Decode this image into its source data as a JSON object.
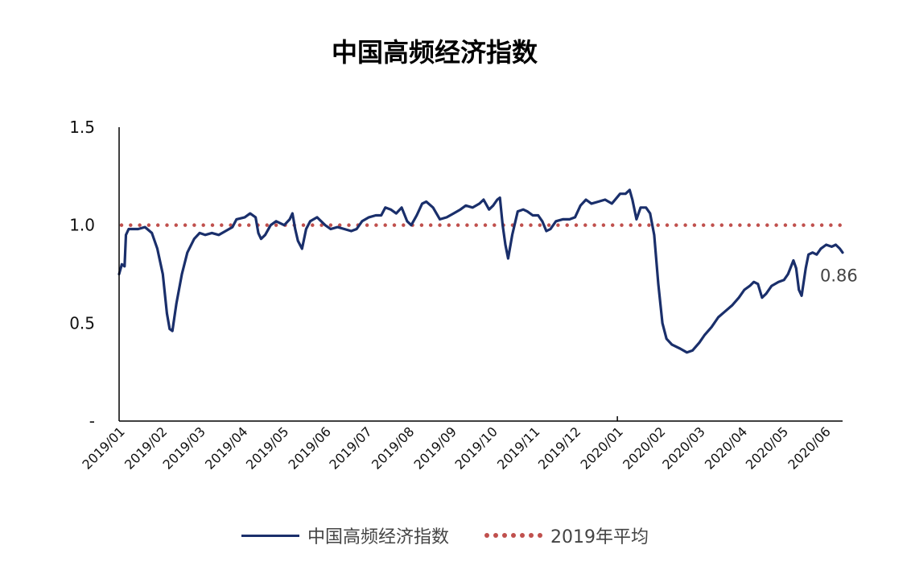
{
  "colors": {
    "series": "#1a2f6b",
    "reference": "#c0504d",
    "axis": "#000000"
  },
  "chart_data": {
    "type": "line",
    "title": "中国高频经济指数",
    "xlabel": "",
    "ylabel": "",
    "ylim": [
      0,
      1.5
    ],
    "yticks": [
      {
        "value": 1.5,
        "label": "1.5"
      },
      {
        "value": 1.0,
        "label": "1.0"
      },
      {
        "value": 0.5,
        "label": "0.5"
      },
      {
        "value": 0,
        "label": "-"
      }
    ],
    "x_ticks": [
      "2019/01",
      "2019/02",
      "2019/03",
      "2019/04",
      "2019/05",
      "2019/06",
      "2019/07",
      "2019/08",
      "2019/09",
      "2019/10",
      "2019/11",
      "2019/12",
      "2020/01",
      "2020/02",
      "2020/03",
      "2020/04",
      "2020/05",
      "2020/06"
    ],
    "grid": false,
    "legend_position": "bottom",
    "end_label": "0.86",
    "series": [
      {
        "name": "中国高频经济指数",
        "style": "solid",
        "points": [
          [
            "2019/01/01",
            0.75
          ],
          [
            "2019/01/03",
            0.8
          ],
          [
            "2019/01/05",
            0.79
          ],
          [
            "2019/01/06",
            0.95
          ],
          [
            "2019/01/08",
            0.98
          ],
          [
            "2019/01/15",
            0.98
          ],
          [
            "2019/01/20",
            0.99
          ],
          [
            "2019/01/25",
            0.96
          ],
          [
            "2019/01/29",
            0.88
          ],
          [
            "2019/02/02",
            0.75
          ],
          [
            "2019/02/05",
            0.55
          ],
          [
            "2019/02/07",
            0.47
          ],
          [
            "2019/02/09",
            0.46
          ],
          [
            "2019/02/12",
            0.6
          ],
          [
            "2019/02/16",
            0.75
          ],
          [
            "2019/02/20",
            0.86
          ],
          [
            "2019/02/25",
            0.93
          ],
          [
            "2019/03/01",
            0.96
          ],
          [
            "2019/03/05",
            0.95
          ],
          [
            "2019/03/10",
            0.96
          ],
          [
            "2019/03/15",
            0.95
          ],
          [
            "2019/03/20",
            0.97
          ],
          [
            "2019/03/25",
            0.99
          ],
          [
            "2019/03/28",
            1.03
          ],
          [
            "2019/04/03",
            1.04
          ],
          [
            "2019/04/07",
            1.06
          ],
          [
            "2019/04/11",
            1.04
          ],
          [
            "2019/04/13",
            0.96
          ],
          [
            "2019/04/15",
            0.93
          ],
          [
            "2019/04/18",
            0.95
          ],
          [
            "2019/04/22",
            1.0
          ],
          [
            "2019/04/26",
            1.02
          ],
          [
            "2019/05/02",
            1.0
          ],
          [
            "2019/05/06",
            1.03
          ],
          [
            "2019/05/08",
            1.06
          ],
          [
            "2019/05/10",
            0.98
          ],
          [
            "2019/05/12",
            0.92
          ],
          [
            "2019/05/15",
            0.88
          ],
          [
            "2019/05/18",
            0.98
          ],
          [
            "2019/05/21",
            1.02
          ],
          [
            "2019/05/26",
            1.04
          ],
          [
            "2019/06/01",
            1.0
          ],
          [
            "2019/06/05",
            0.98
          ],
          [
            "2019/06/10",
            0.99
          ],
          [
            "2019/06/15",
            0.98
          ],
          [
            "2019/06/20",
            0.97
          ],
          [
            "2019/06/24",
            0.98
          ],
          [
            "2019/06/28",
            1.02
          ],
          [
            "2019/07/03",
            1.04
          ],
          [
            "2019/07/08",
            1.05
          ],
          [
            "2019/07/12",
            1.05
          ],
          [
            "2019/07/15",
            1.09
          ],
          [
            "2019/07/19",
            1.08
          ],
          [
            "2019/07/23",
            1.06
          ],
          [
            "2019/07/27",
            1.09
          ],
          [
            "2019/07/31",
            1.02
          ],
          [
            "2019/08/03",
            1.0
          ],
          [
            "2019/08/07",
            1.05
          ],
          [
            "2019/08/11",
            1.11
          ],
          [
            "2019/08/14",
            1.12
          ],
          [
            "2019/08/19",
            1.09
          ],
          [
            "2019/08/24",
            1.03
          ],
          [
            "2019/08/29",
            1.04
          ],
          [
            "2019/09/03",
            1.06
          ],
          [
            "2019/09/08",
            1.08
          ],
          [
            "2019/09/12",
            1.1
          ],
          [
            "2019/09/17",
            1.09
          ],
          [
            "2019/09/22",
            1.11
          ],
          [
            "2019/09/25",
            1.13
          ],
          [
            "2019/09/29",
            1.08
          ],
          [
            "2019/10/02",
            1.1
          ],
          [
            "2019/10/05",
            1.13
          ],
          [
            "2019/10/07",
            1.14
          ],
          [
            "2019/10/09",
            1.0
          ],
          [
            "2019/10/11",
            0.9
          ],
          [
            "2019/10/13",
            0.83
          ],
          [
            "2019/10/16",
            0.95
          ],
          [
            "2019/10/20",
            1.07
          ],
          [
            "2019/10/24",
            1.08
          ],
          [
            "2019/10/27",
            1.07
          ],
          [
            "2019/10/31",
            1.05
          ],
          [
            "2019/11/04",
            1.05
          ],
          [
            "2019/11/07",
            1.02
          ],
          [
            "2019/11/10",
            0.97
          ],
          [
            "2019/11/13",
            0.98
          ],
          [
            "2019/11/17",
            1.02
          ],
          [
            "2019/11/22",
            1.03
          ],
          [
            "2019/11/27",
            1.03
          ],
          [
            "2019/12/01",
            1.04
          ],
          [
            "2019/12/05",
            1.1
          ],
          [
            "2019/12/09",
            1.13
          ],
          [
            "2019/12/13",
            1.11
          ],
          [
            "2019/12/18",
            1.12
          ],
          [
            "2019/12/23",
            1.13
          ],
          [
            "2019/12/28",
            1.11
          ],
          [
            "2020/01/03",
            1.16
          ],
          [
            "2020/01/07",
            1.16
          ],
          [
            "2020/01/10",
            1.18
          ],
          [
            "2020/01/12",
            1.13
          ],
          [
            "2020/01/15",
            1.03
          ],
          [
            "2020/01/18",
            1.09
          ],
          [
            "2020/01/22",
            1.09
          ],
          [
            "2020/01/25",
            1.06
          ],
          [
            "2020/01/28",
            0.95
          ],
          [
            "2020/01/31",
            0.7
          ],
          [
            "2020/02/03",
            0.5
          ],
          [
            "2020/02/06",
            0.42
          ],
          [
            "2020/02/10",
            0.39
          ],
          [
            "2020/02/16",
            0.37
          ],
          [
            "2020/02/21",
            0.35
          ],
          [
            "2020/02/25",
            0.36
          ],
          [
            "2020/03/01",
            0.4
          ],
          [
            "2020/03/05",
            0.44
          ],
          [
            "2020/03/10",
            0.48
          ],
          [
            "2020/03/15",
            0.53
          ],
          [
            "2020/03/20",
            0.56
          ],
          [
            "2020/03/25",
            0.59
          ],
          [
            "2020/03/30",
            0.63
          ],
          [
            "2020/04/03",
            0.67
          ],
          [
            "2020/04/07",
            0.69
          ],
          [
            "2020/04/10",
            0.71
          ],
          [
            "2020/04/13",
            0.7
          ],
          [
            "2020/04/16",
            0.63
          ],
          [
            "2020/04/19",
            0.65
          ],
          [
            "2020/04/23",
            0.69
          ],
          [
            "2020/04/28",
            0.71
          ],
          [
            "2020/05/02",
            0.72
          ],
          [
            "2020/05/05",
            0.75
          ],
          [
            "2020/05/09",
            0.82
          ],
          [
            "2020/05/11",
            0.78
          ],
          [
            "2020/05/13",
            0.67
          ],
          [
            "2020/05/15",
            0.64
          ],
          [
            "2020/05/18",
            0.78
          ],
          [
            "2020/05/20",
            0.85
          ],
          [
            "2020/05/23",
            0.86
          ],
          [
            "2020/05/26",
            0.85
          ],
          [
            "2020/05/29",
            0.88
          ],
          [
            "2020/06/02",
            0.9
          ],
          [
            "2020/06/06",
            0.89
          ],
          [
            "2020/06/09",
            0.9
          ],
          [
            "2020/06/12",
            0.88
          ],
          [
            "2020/06/14",
            0.86
          ]
        ]
      },
      {
        "name": "2019年平均",
        "style": "dotted",
        "value": 1.0
      }
    ]
  }
}
